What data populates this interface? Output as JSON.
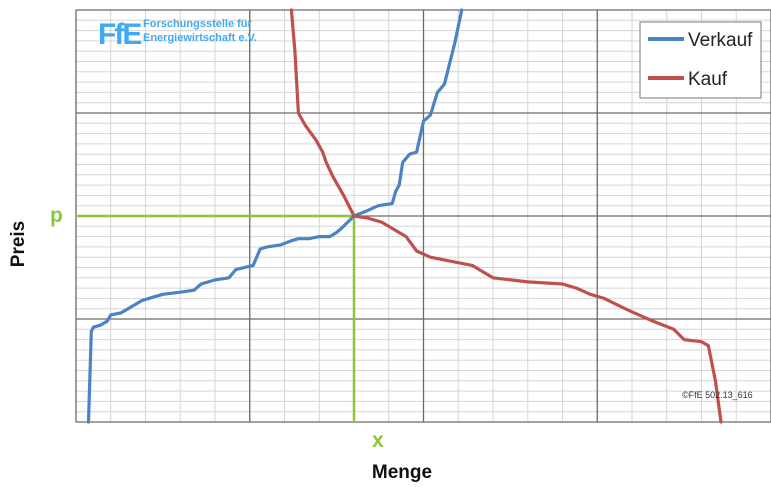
{
  "chart_data": {
    "type": "line",
    "title": "",
    "xlabel": "Menge",
    "ylabel": "Preis",
    "xlim": [
      0,
      10
    ],
    "ylim": [
      0,
      10
    ],
    "grid": true,
    "legend_position": "top-right",
    "annotations": {
      "p_label": "p",
      "x_label": "x",
      "equilibrium": {
        "x": 4.0,
        "y": 5.0
      },
      "marker_color": "#8cc63f"
    },
    "series": [
      {
        "name": "Verkauf",
        "color": "#4a84c4",
        "points": [
          [
            0.18,
            0
          ],
          [
            0.22,
            2.2
          ],
          [
            0.25,
            2.3
          ],
          [
            0.35,
            2.35
          ],
          [
            0.45,
            2.45
          ],
          [
            0.5,
            2.6
          ],
          [
            0.65,
            2.65
          ],
          [
            0.8,
            2.8
          ],
          [
            0.95,
            2.95
          ],
          [
            1.15,
            3.05
          ],
          [
            1.25,
            3.1
          ],
          [
            1.5,
            3.15
          ],
          [
            1.7,
            3.2
          ],
          [
            1.8,
            3.35
          ],
          [
            2.0,
            3.45
          ],
          [
            2.2,
            3.5
          ],
          [
            2.3,
            3.7
          ],
          [
            2.55,
            3.8
          ],
          [
            2.65,
            4.2
          ],
          [
            2.75,
            4.25
          ],
          [
            2.95,
            4.3
          ],
          [
            3.1,
            4.4
          ],
          [
            3.2,
            4.45
          ],
          [
            3.35,
            4.45
          ],
          [
            3.5,
            4.5
          ],
          [
            3.65,
            4.5
          ],
          [
            3.75,
            4.6
          ],
          [
            3.85,
            4.75
          ],
          [
            4.0,
            5.0
          ],
          [
            4.15,
            5.1
          ],
          [
            4.35,
            5.25
          ],
          [
            4.55,
            5.3
          ],
          [
            4.6,
            5.6
          ],
          [
            4.65,
            5.75
          ],
          [
            4.7,
            6.3
          ],
          [
            4.8,
            6.5
          ],
          [
            4.9,
            6.55
          ],
          [
            5.0,
            7.3
          ],
          [
            5.1,
            7.45
          ],
          [
            5.2,
            8.0
          ],
          [
            5.3,
            8.2
          ],
          [
            5.45,
            9.2
          ],
          [
            5.55,
            10
          ]
        ]
      },
      {
        "name": "Kauf",
        "color": "#c0504d",
        "points": [
          [
            3.1,
            10
          ],
          [
            3.15,
            9.0
          ],
          [
            3.2,
            7.5
          ],
          [
            3.3,
            7.2
          ],
          [
            3.45,
            6.85
          ],
          [
            3.55,
            6.55
          ],
          [
            3.6,
            6.3
          ],
          [
            3.7,
            5.95
          ],
          [
            3.85,
            5.5
          ],
          [
            4.0,
            5.0
          ],
          [
            4.2,
            4.95
          ],
          [
            4.4,
            4.85
          ],
          [
            4.55,
            4.7
          ],
          [
            4.75,
            4.5
          ],
          [
            4.9,
            4.15
          ],
          [
            5.1,
            4.0
          ],
          [
            5.4,
            3.9
          ],
          [
            5.7,
            3.8
          ],
          [
            5.85,
            3.65
          ],
          [
            6.0,
            3.5
          ],
          [
            6.5,
            3.4
          ],
          [
            7.0,
            3.35
          ],
          [
            7.2,
            3.25
          ],
          [
            7.4,
            3.1
          ],
          [
            7.6,
            3.0
          ],
          [
            7.9,
            2.75
          ],
          [
            8.1,
            2.6
          ],
          [
            8.3,
            2.45
          ],
          [
            8.6,
            2.25
          ],
          [
            8.75,
            2.0
          ],
          [
            9.0,
            1.95
          ],
          [
            9.1,
            1.85
          ],
          [
            9.2,
            1.0
          ],
          [
            9.28,
            0
          ]
        ]
      }
    ]
  },
  "logo": {
    "mark": "FfE",
    "line1": "Forschungsstelle für",
    "line2": "Energiewirtschaft e.V.",
    "color": "#3fa9f5"
  },
  "copyright": "©FfE 502.13_616"
}
